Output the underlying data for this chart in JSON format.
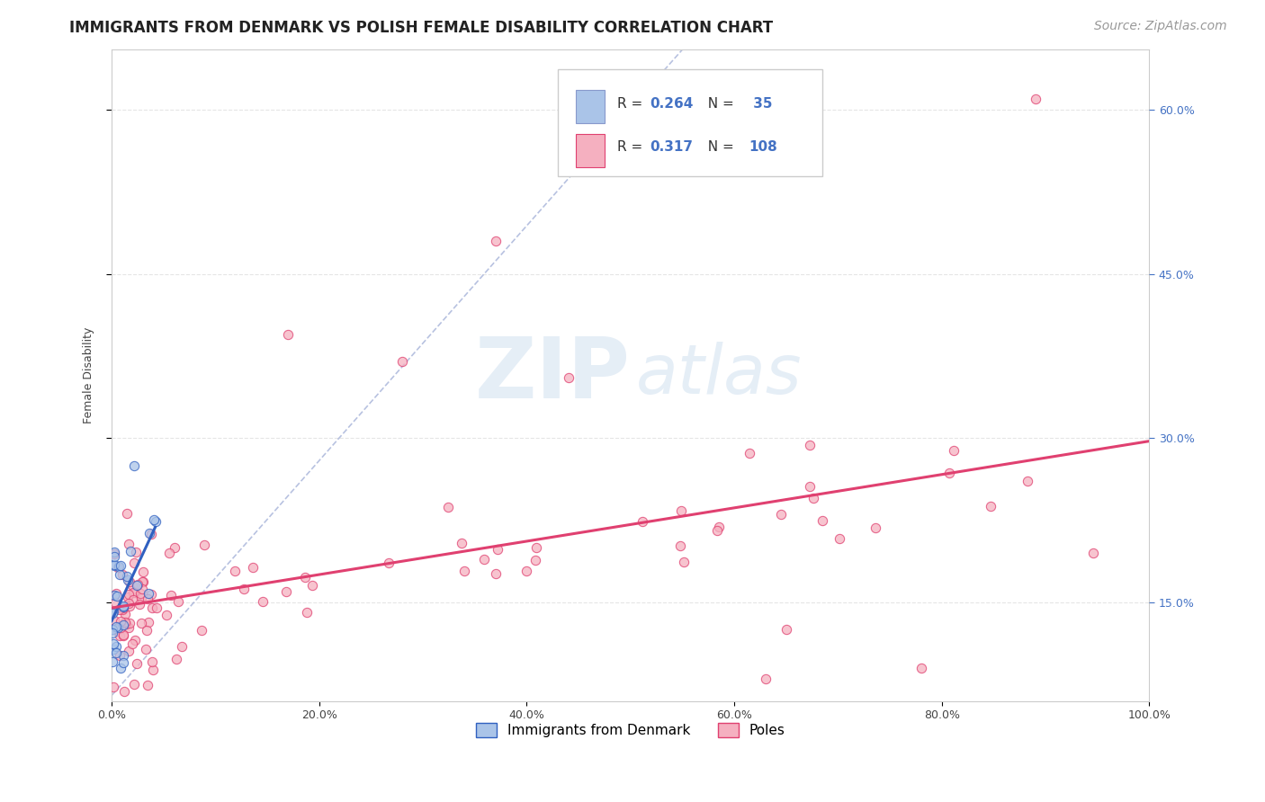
{
  "title": "IMMIGRANTS FROM DENMARK VS POLISH FEMALE DISABILITY CORRELATION CHART",
  "source": "Source: ZipAtlas.com",
  "ylabel": "Female Disability",
  "legend_bottom": [
    "Immigrants from Denmark",
    "Poles"
  ],
  "r_denmark": 0.264,
  "n_denmark": 35,
  "r_poles": 0.317,
  "n_poles": 108,
  "color_denmark": "#aac4e8",
  "color_poles": "#f5b0c0",
  "trend_denmark": "#3060c0",
  "trend_poles": "#e04070",
  "watermark_zip": "ZIP",
  "watermark_atlas": "atlas",
  "background_color": "#ffffff",
  "xlim": [
    0.0,
    1.0
  ],
  "ylim": [
    0.06,
    0.655
  ],
  "yticks": [
    0.15,
    0.3,
    0.45,
    0.6
  ],
  "xticks": [
    0.0,
    0.2,
    0.4,
    0.6,
    0.8,
    1.0
  ],
  "title_fontsize": 12,
  "axis_label_fontsize": 9,
  "tick_fontsize": 9,
  "legend_fontsize": 11,
  "source_fontsize": 10
}
